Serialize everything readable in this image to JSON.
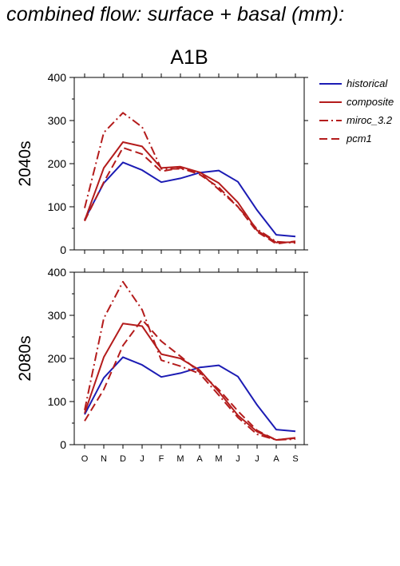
{
  "title": "combined flow: surface + basal (mm):",
  "chart_data": {
    "type": "line",
    "scenario": "A1B",
    "categories": [
      "O",
      "N",
      "D",
      "J",
      "F",
      "M",
      "A",
      "M",
      "J",
      "J",
      "A",
      "S"
    ],
    "ylim": [
      0,
      400
    ],
    "yticks": [
      0,
      100,
      200,
      300,
      400
    ],
    "grid": false,
    "legend_position": "top-right, outside plot",
    "legend": [
      {
        "name": "historical",
        "color": "#1c1cb4",
        "dash": "solid"
      },
      {
        "name": "composite",
        "color": "#b41c1c",
        "dash": "solid"
      },
      {
        "name": "miroc_3.2",
        "color": "#b41c1c",
        "dash": "dashdot"
      },
      {
        "name": "pcm1",
        "color": "#b41c1c",
        "dash": "dashed"
      }
    ],
    "panels": [
      {
        "label": "2040s",
        "series": [
          {
            "name": "historical",
            "values": [
              70,
              155,
              203,
              185,
              157,
              166,
              179,
              184,
              158,
              92,
              35,
              31
            ]
          },
          {
            "name": "composite",
            "values": [
              68,
              190,
              250,
              240,
              190,
              193,
              180,
              155,
              110,
              45,
              17,
              18
            ]
          },
          {
            "name": "miroc_3.2",
            "values": [
              97,
              272,
              318,
              285,
              188,
              188,
              180,
              140,
              100,
              48,
              19,
              16
            ]
          },
          {
            "name": "pcm1",
            "values": [
              67,
              157,
              237,
              222,
              182,
              190,
              175,
              145,
              100,
              42,
              14,
              20
            ]
          }
        ]
      },
      {
        "label": "2080s",
        "series": [
          {
            "name": "historical",
            "values": [
              70,
              155,
              203,
              185,
              157,
              166,
              179,
              184,
              158,
              92,
              35,
              31
            ]
          },
          {
            "name": "composite",
            "values": [
              73,
              203,
              281,
              275,
              210,
              200,
              173,
              123,
              68,
              30,
              11,
              16
            ]
          },
          {
            "name": "miroc_3.2",
            "values": [
              80,
              293,
              378,
              313,
              196,
              182,
              165,
              115,
              63,
              24,
              11,
              13
            ]
          },
          {
            "name": "pcm1",
            "values": [
              55,
              128,
              230,
              290,
              240,
              205,
              168,
              128,
              78,
              33,
              11,
              15
            ]
          }
        ]
      }
    ]
  }
}
